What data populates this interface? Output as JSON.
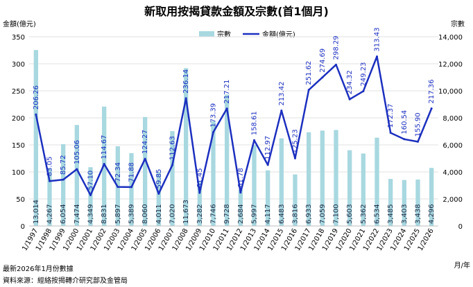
{
  "chart_data": {
    "type": "bar+line",
    "title": "新取用按揭貸款金額及宗數(首1個月)",
    "y_left_label": "金額(億元)",
    "y_right_label": "宗數",
    "x_unit_label": "月/年",
    "ylim_left": [
      0,
      350
    ],
    "ylim_right": [
      0,
      14000
    ],
    "left_ticks": [
      "0",
      "50",
      "100",
      "150",
      "200",
      "250",
      "300",
      "350"
    ],
    "right_ticks": [
      "0",
      "2,000",
      "4,000",
      "6,000",
      "8,000",
      "10,000",
      "12,000",
      "14,000"
    ],
    "categories": [
      "1/1997",
      "1/1998",
      "1/1999",
      "1/2000",
      "1/2001",
      "1/2002",
      "1/2003",
      "1/2004",
      "1/2005",
      "1/2006",
      "1/2007",
      "1/2008",
      "1/2009",
      "1/2010",
      "1/2011",
      "1/2012",
      "1/2013",
      "1/2014",
      "1/2015",
      "1/2016",
      "1/2017",
      "1/2018",
      "1/2019",
      "1/2020",
      "1/2021",
      "1/2022",
      "1/2023",
      "1/2024",
      "1/2025",
      "1/2026"
    ],
    "series": [
      {
        "name": "宗數",
        "type": "bar",
        "axis": "right",
        "color": "#a8d8e0",
        "values": [
          13014,
          4267,
          6054,
          7474,
          4349,
          8831,
          5897,
          5389,
          8060,
          4011,
          7020,
          11673,
          3282,
          7746,
          9728,
          2684,
          5997,
          4117,
          6483,
          3816,
          6933,
          7059,
          7100,
          5603,
          5362,
          6534,
          3485,
          3403,
          3438,
          4296
        ],
        "labels": [
          "13,014",
          "4,267",
          "6,054",
          "7,474",
          "4,349",
          "8,831",
          "5,897",
          "5,389",
          "8,060",
          "4,011",
          "7,020",
          "11,673",
          "3,282",
          "7,746",
          "9,728",
          "2,684",
          "5,997",
          "4,117",
          "6,483",
          "3,816",
          "6,933",
          "7,059",
          "7,100",
          "5,603",
          "5,362",
          "6,534",
          "3,485",
          "3,403",
          "3,438",
          "4,296"
        ]
      },
      {
        "name": "金額(億元)",
        "type": "line",
        "axis": "left",
        "color": "#1c2fbf",
        "values": [
          206.26,
          83.05,
          85.72,
          105.06,
          57.1,
          114.67,
          72.34,
          71.88,
          124.27,
          59.85,
          112.63,
          236.14,
          61.45,
          173.39,
          217.21,
          61.78,
          158.61,
          112.97,
          213.42,
          125.23,
          251.62,
          274.69,
          298.29,
          234.32,
          249.23,
          313.43,
          172.37,
          160.54,
          155.9,
          217.36
        ],
        "labels": [
          "206.26",
          "83.05",
          "85.72",
          "105.06",
          "57.10",
          "114.67",
          "72.34",
          "71.88",
          "124.27",
          "59.85",
          "112.63",
          "236.14",
          "61.45",
          "173.39",
          "217.21",
          "61.78",
          "158.61",
          "112.97",
          "213.42",
          "125.23",
          "251.62",
          "274.69",
          "298.29",
          "234.32",
          "249.23",
          "313.43",
          "172.37",
          "160.54",
          "155.90",
          "217.36"
        ]
      }
    ],
    "legend_position": "top-center",
    "grid": "horizontal"
  },
  "footnotes": {
    "note": "最新2026年1月份數據",
    "source": "資料來源：經絡按揭轉介研究部及金管局"
  }
}
